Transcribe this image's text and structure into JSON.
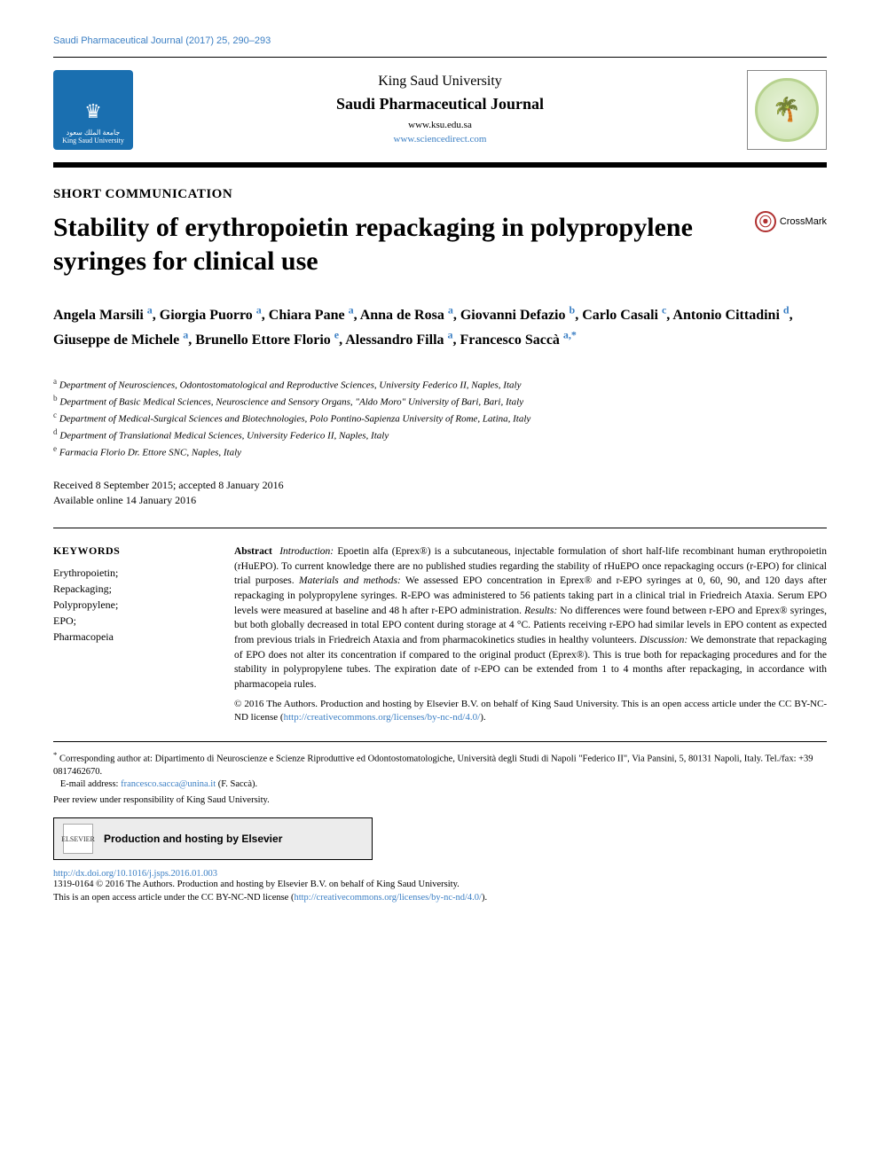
{
  "colors": {
    "link": "#3b7fc4",
    "text": "#000000",
    "ksu_logo_bg": "#1a6fb0",
    "badge_border": "#b7d28f",
    "crossmark_red": "#b03030",
    "elsevier_bg": "#ececec"
  },
  "fonts": {
    "body_family": "Georgia, 'Times New Roman', serif",
    "sans_family": "Arial, sans-serif",
    "running_head_size": 11,
    "title_size": 30,
    "authors_size": 16,
    "affil_size": 11,
    "abstract_size": 11.5,
    "kw_size": 12
  },
  "running_head": "Saudi Pharmaceutical Journal (2017) 25, 290–293",
  "header": {
    "ksu_text": "King Saud University",
    "ksu_logo_arabic": "جامعة الملك سعود",
    "university": "King Saud University",
    "journal_name": "Saudi Pharmaceutical Journal",
    "link1": "www.ksu.edu.sa",
    "link2": "www.sciencedirect.com"
  },
  "article_type": "SHORT COMMUNICATION",
  "title": "Stability of erythropoietin repackaging in polypropylene syringes for clinical use",
  "crossmark": "CrossMark",
  "authors_html": "Angela Marsili <sup>a</sup>, Giorgia Puorro <sup>a</sup>, Chiara Pane <sup>a</sup>, Anna de Rosa <sup>a</sup>, Giovanni Defazio <sup>b</sup>, Carlo Casali <sup>c</sup>, Antonio Cittadini <sup>d</sup>, Giuseppe de Michele <sup>a</sup>, Brunello Ettore Florio <sup>e</sup>, Alessandro Filla <sup>a</sup>, Francesco Saccà <sup>a,*</sup>",
  "affiliations": [
    {
      "mark": "a",
      "text": "Department of Neurosciences, Odontostomatological and Reproductive Sciences, University Federico II, Naples, Italy"
    },
    {
      "mark": "b",
      "text": "Department of Basic Medical Sciences, Neuroscience and Sensory Organs, \"Aldo Moro\" University of Bari, Bari, Italy"
    },
    {
      "mark": "c",
      "text": "Department of Medical-Surgical Sciences and Biotechnologies, Polo Pontino-Sapienza University of Rome, Latina, Italy"
    },
    {
      "mark": "d",
      "text": "Department of Translational Medical Sciences, University Federico II, Naples, Italy"
    },
    {
      "mark": "e",
      "text": "Farmacia Florio Dr. Ettore SNC, Naples, Italy"
    }
  ],
  "dates": {
    "received_accepted": "Received 8 September 2015; accepted 8 January 2016",
    "online": "Available online 14 January 2016"
  },
  "keywords": {
    "heading": "KEYWORDS",
    "items": "Erythropoietin;\nRepackaging;\nPolypropylene;\nEPO;\nPharmacopeia"
  },
  "abstract": {
    "label": "Abstract",
    "intro_head": "Introduction:",
    "intro": " Epoetin alfa (Eprex®) is a subcutaneous, injectable formulation of short half-life recombinant human erythropoietin (rHuEPO). To current knowledge there are no published studies regarding the stability of rHuEPO once repackaging occurs (r-EPO) for clinical trial purposes. ",
    "mm_head": "Materials and methods:",
    "mm": " We assessed EPO concentration in Eprex® and r-EPO syringes at 0, 60, 90, and 120 days after repackaging in polypropylene syringes. R-EPO was administered to 56 patients taking part in a clinical trial in Friedreich Ataxia. Serum EPO levels were measured at baseline and 48 h after r-EPO administration. ",
    "res_head": "Results:",
    "res": " No differences were found between r-EPO and Eprex® syringes, but both globally decreased in total EPO content during storage at 4 °C. Patients receiving r-EPO had similar levels in EPO content as expected from previous trials in Friedreich Ataxia and from pharmacokinetics studies in healthy volunteers. ",
    "disc_head": "Discussion:",
    "disc": " We demonstrate that repackaging of EPO does not alter its concentration if compared to the original product (Eprex®). This is true both for repackaging procedures and for the stability in polypropylene tubes. The expiration date of r-EPO can be extended from 1 to 4 months after repackaging, in accordance with pharmacopeia rules.",
    "copyright": "© 2016 The Authors. Production and hosting by Elsevier B.V. on behalf of King Saud University. This is an open access article under the CC BY-NC-ND license (",
    "cc_link": "http://creativecommons.org/licenses/by-nc-nd/4.0/",
    "copyright_close": ")."
  },
  "corresponding": {
    "star": "*",
    "text": "Corresponding author at: Dipartimento di Neuroscienze e Scienze Riproduttive ed Odontostomatologiche, Università degli Studi di Napoli \"Federico II\", Via Pansini, 5, 80131 Napoli, Italy. Tel./fax: +39 0817462670.",
    "email_label": "E-mail address: ",
    "email": "francesco.sacca@unina.it",
    "email_name": " (F. Saccà)."
  },
  "peer_review": "Peer review under responsibility of King Saud University.",
  "elsevier_box": "Production and hosting by Elsevier",
  "doi": "http://dx.doi.org/10.1016/j.jsps.2016.01.003",
  "bottom": {
    "line1": "1319-0164 © 2016 The Authors. Production and hosting by Elsevier B.V. on behalf of King Saud University.",
    "line2_pre": "This is an open access article under the CC BY-NC-ND license (",
    "line2_link": "http://creativecommons.org/licenses/by-nc-nd/4.0/",
    "line2_post": ")."
  }
}
